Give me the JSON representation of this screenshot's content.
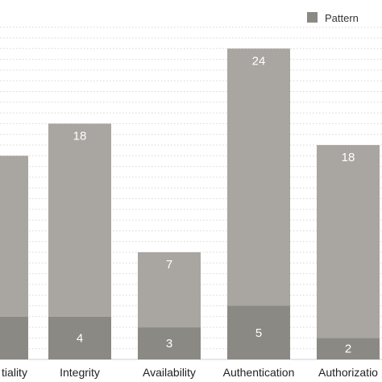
{
  "chart_data": {
    "type": "bar",
    "stacked": true,
    "categories": [
      "Confidentiality",
      "Integrity",
      "Availability",
      "Authentication",
      "Authorization"
    ],
    "visible_category_labels": [
      "tiality",
      "Integrity",
      "Availability",
      "Authentication",
      "Authorizatio"
    ],
    "series": [
      {
        "name": "Pattern",
        "values": [
          4,
          4,
          3,
          5,
          2
        ],
        "color": "#8b8984"
      },
      {
        "name": "",
        "values": [
          15,
          18,
          7,
          24,
          18
        ],
        "color": "#a9a6a1"
      }
    ],
    "legend": {
      "position": "top-right",
      "entries": [
        "Pattern"
      ]
    },
    "grid": true,
    "grid_style": "dotted horizontal",
    "ylim": [
      0,
      31
    ]
  }
}
